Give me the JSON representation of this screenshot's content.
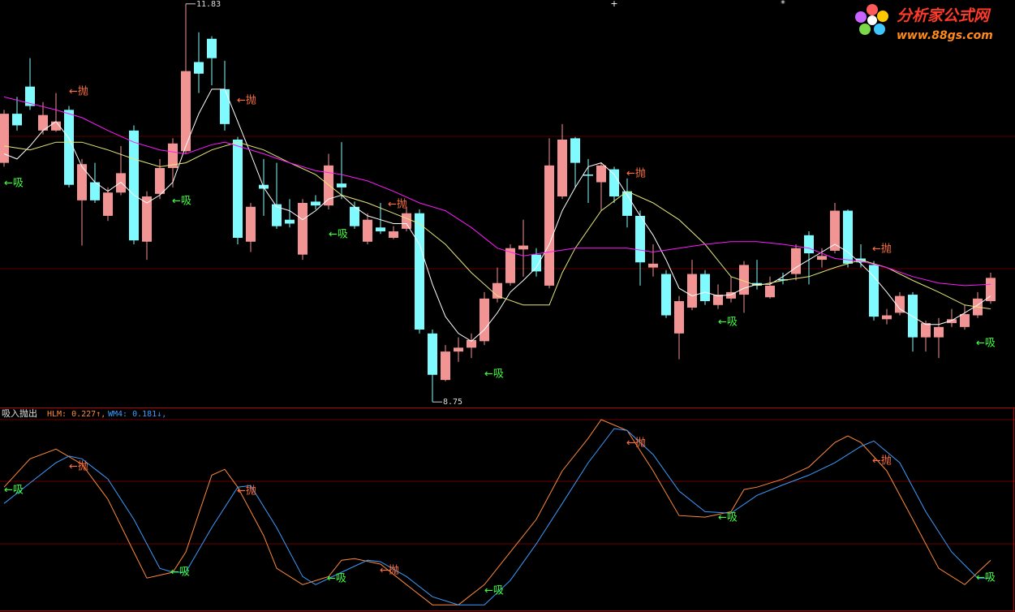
{
  "chart_data": [
    {
      "type": "candlestick",
      "open": [
        10.6,
        10.98,
        11.19,
        10.85,
        10.85,
        11.01,
        10.31,
        10.45,
        10.19,
        10.37,
        10.85,
        9.99,
        10.36,
        10.56,
        10.69,
        11.38,
        11.56,
        11.17,
        10.78,
        9.99,
        10.43,
        10.28,
        10.16,
        9.89,
        10.3,
        10.27,
        10.44,
        10.26,
        9.99,
        10.1,
        10.02,
        10.09,
        10.21,
        9.28,
        8.92,
        9.14,
        9.17,
        9.22,
        9.55,
        9.67,
        9.93,
        9.89,
        9.65,
        10.34,
        10.79,
        10.51,
        10.45,
        10.55,
        10.38,
        10.19,
        9.79,
        9.74,
        9.28,
        9.48,
        9.74,
        9.5,
        9.55,
        9.58,
        9.67,
        9.56,
        9.7,
        9.74,
        10.04,
        9.85,
        9.92,
        10.23,
        9.86,
        9.81,
        9.39,
        9.44,
        9.58,
        9.25,
        9.25,
        9.36,
        9.33,
        9.42,
        9.53
      ],
      "high": [
        11.01,
        11.11,
        11.41,
        11.07,
        11.14,
        11.04,
        10.63,
        10.6,
        10.41,
        10.73,
        10.89,
        10.38,
        10.63,
        10.79,
        11.83,
        11.61,
        11.58,
        11.39,
        10.8,
        10.29,
        10.63,
        10.6,
        10.32,
        10.32,
        10.35,
        10.67,
        10.76,
        10.3,
        10.21,
        10.29,
        10.11,
        10.26,
        10.24,
        9.31,
        9.19,
        9.25,
        9.28,
        9.6,
        9.79,
        9.97,
        10.16,
        9.94,
        10.79,
        10.9,
        10.8,
        10.63,
        10.6,
        10.57,
        10.48,
        10.23,
        9.97,
        9.77,
        9.57,
        9.85,
        9.77,
        9.66,
        9.72,
        9.84,
        9.85,
        9.72,
        9.75,
        9.97,
        10.07,
        9.94,
        10.29,
        10.24,
        9.97,
        9.84,
        9.47,
        9.6,
        9.6,
        9.38,
        9.4,
        9.47,
        9.5,
        9.6,
        9.75
      ],
      "low": [
        10.57,
        10.85,
        11.01,
        10.82,
        10.84,
        10.41,
        9.96,
        10.29,
        10.15,
        10.35,
        9.97,
        9.85,
        10.32,
        10.41,
        10.67,
        11.14,
        11.2,
        10.85,
        9.97,
        9.91,
        10.19,
        10.09,
        10.1,
        9.85,
        10.24,
        10.24,
        10.32,
        10.09,
        9.97,
        10.05,
        10.01,
        10.07,
        9.28,
        8.75,
        8.91,
        9.06,
        9.09,
        9.19,
        9.52,
        9.65,
        9.72,
        9.72,
        9.63,
        10.32,
        10.41,
        10.29,
        10.23,
        10.29,
        10.1,
        9.65,
        9.72,
        9.4,
        9.08,
        9.46,
        9.5,
        9.47,
        9.52,
        9.44,
        9.62,
        9.55,
        9.66,
        9.69,
        9.66,
        9.79,
        9.9,
        9.79,
        9.79,
        9.38,
        9.35,
        9.42,
        9.14,
        9.14,
        9.09,
        9.33,
        9.31,
        9.4,
        9.51
      ],
      "close": [
        10.98,
        10.89,
        11.04,
        10.97,
        10.92,
        10.43,
        10.59,
        10.31,
        10.37,
        10.52,
        10.0,
        10.34,
        10.56,
        10.75,
        11.31,
        11.29,
        11.41,
        10.9,
        10.02,
        10.26,
        10.4,
        10.11,
        10.13,
        10.29,
        10.27,
        10.58,
        10.41,
        10.11,
        10.16,
        10.07,
        10.07,
        10.21,
        9.31,
        8.96,
        9.14,
        9.17,
        9.23,
        9.55,
        9.67,
        9.94,
        9.96,
        9.76,
        10.58,
        10.78,
        10.6,
        10.5,
        10.58,
        10.34,
        10.19,
        9.83,
        9.82,
        9.42,
        9.53,
        9.74,
        9.53,
        9.58,
        9.6,
        9.81,
        9.65,
        9.65,
        9.69,
        9.94,
        9.9,
        9.88,
        10.23,
        9.82,
        9.83,
        9.41,
        9.42,
        9.57,
        9.25,
        9.36,
        9.33,
        9.39,
        9.43,
        9.55,
        9.71
      ],
      "up_color": "#f29494",
      "down_color": "#7ffbff",
      "ylim": [
        8.72,
        11.86
      ],
      "series": [
        {
          "color": "#ffffff",
          "values": [
            10.67,
            10.63,
            10.73,
            10.85,
            10.92,
            10.79,
            10.57,
            10.45,
            10.38,
            10.45,
            10.35,
            10.29,
            10.35,
            10.45,
            10.73,
            10.98,
            11.17,
            11.17,
            10.92,
            10.67,
            10.41,
            10.26,
            10.23,
            10.16,
            10.23,
            10.32,
            10.35,
            10.26,
            10.19,
            10.16,
            10.13,
            10.13,
            9.97,
            9.66,
            9.41,
            9.28,
            9.22,
            9.31,
            9.44,
            9.6,
            9.69,
            9.79,
            9.97,
            10.23,
            10.41,
            10.57,
            10.6,
            10.51,
            10.35,
            10.19,
            10.04,
            9.85,
            9.63,
            9.57,
            9.6,
            9.57,
            9.58,
            9.63,
            9.66,
            9.66,
            9.72,
            9.79,
            9.85,
            9.91,
            9.97,
            9.91,
            9.82,
            9.72,
            9.6,
            9.47,
            9.41,
            9.35,
            9.35,
            9.38,
            9.44,
            9.5,
            9.57
          ]
        },
        {
          "color": "#e8e87a",
          "x": [
            0,
            2,
            4,
            6,
            8,
            10,
            12,
            14,
            16,
            18,
            20,
            22,
            24,
            26,
            28,
            30,
            32,
            34,
            36,
            38,
            40,
            42,
            43,
            44,
            46,
            48,
            50,
            52,
            54,
            56,
            58,
            60,
            62,
            64,
            66,
            68,
            70,
            72,
            74,
            76
          ],
          "values": [
            10.73,
            10.7,
            10.76,
            10.76,
            10.7,
            10.63,
            10.57,
            10.6,
            10.7,
            10.76,
            10.7,
            10.6,
            10.51,
            10.35,
            10.29,
            10.21,
            10.13,
            9.97,
            9.75,
            9.57,
            9.5,
            9.5,
            9.75,
            9.94,
            10.23,
            10.38,
            10.29,
            10.16,
            9.97,
            9.72,
            9.65,
            9.69,
            9.72,
            9.79,
            9.85,
            9.79,
            9.69,
            9.6,
            9.5,
            9.47
          ]
        },
        {
          "color": "#ff1aff",
          "x": [
            0,
            2,
            4,
            6,
            8,
            10,
            12,
            14,
            16,
            17,
            18,
            20,
            22,
            24,
            26,
            28,
            30,
            32,
            34,
            36,
            38,
            40,
            42,
            44,
            46,
            48,
            50,
            52,
            54,
            56,
            58,
            60,
            62,
            64,
            66,
            68,
            70,
            72,
            74,
            76
          ],
          "values": [
            11.11,
            11.06,
            11.01,
            10.95,
            10.85,
            10.76,
            10.7,
            10.67,
            10.74,
            10.76,
            10.73,
            10.67,
            10.6,
            10.54,
            10.51,
            10.46,
            10.38,
            10.29,
            10.23,
            10.1,
            9.94,
            9.88,
            9.91,
            9.94,
            9.94,
            9.94,
            9.91,
            9.94,
            9.97,
            9.99,
            9.99,
            9.97,
            9.94,
            9.86,
            9.84,
            9.79,
            9.72,
            9.67,
            9.65,
            9.66
          ]
        }
      ],
      "annotations": [
        {
          "text": "←抛",
          "color": "#ff7040"
        },
        {
          "text": "←抛",
          "color": "#ff7040"
        },
        {
          "text": "←抛",
          "color": "#ff7040"
        },
        {
          "text": "←抛",
          "color": "#ff7040"
        },
        {
          "text": "←抛",
          "color": "#ff7040"
        },
        {
          "text": "←吸",
          "color": "#3cff3c"
        },
        {
          "text": "←吸",
          "color": "#3cff3c"
        },
        {
          "text": "←吸",
          "color": "#3cff3c"
        },
        {
          "text": "←吸",
          "color": "#3cff3c"
        },
        {
          "text": "←吸",
          "color": "#3cff3c"
        },
        {
          "text": "←吸",
          "color": "#3cff3c"
        }
      ]
    },
    {
      "type": "line",
      "title": "吸入抛出",
      "ylim": [
        0.102,
        0.614
      ],
      "series": [
        {
          "name": "HLM: 0.227↑,",
          "color": "#ff8a3a",
          "x": [
            0,
            2,
            4,
            6,
            8,
            10,
            11,
            13,
            14,
            16,
            17,
            18,
            20,
            21,
            23,
            25,
            26,
            27,
            29,
            31,
            33,
            35,
            37,
            39,
            41,
            43,
            45,
            46,
            48,
            50,
            52,
            54,
            56,
            57,
            58,
            60,
            62,
            64,
            65,
            66,
            68,
            70,
            72,
            74,
            76
          ],
          "values": [
            0.415,
            0.488,
            0.513,
            0.474,
            0.384,
            0.248,
            0.181,
            0.196,
            0.248,
            0.446,
            0.461,
            0.415,
            0.29,
            0.206,
            0.164,
            0.185,
            0.227,
            0.231,
            0.217,
            0.164,
            0.112,
            0.112,
            0.164,
            0.248,
            0.332,
            0.457,
            0.541,
            0.589,
            0.561,
            0.457,
            0.342,
            0.338,
            0.352,
            0.409,
            0.415,
            0.436,
            0.467,
            0.53,
            0.547,
            0.53,
            0.457,
            0.332,
            0.206,
            0.164,
            0.227
          ]
        },
        {
          "name": "WM4: 0.181↓,",
          "color": "#3c9cff",
          "x": [
            0,
            2,
            4,
            5,
            6,
            8,
            10,
            12,
            13,
            14,
            16,
            18,
            19,
            21,
            23,
            24,
            26,
            28,
            29,
            31,
            33,
            35,
            37,
            39,
            41,
            43,
            45,
            47,
            48,
            50,
            52,
            54,
            56,
            58,
            60,
            62,
            64,
            66,
            67,
            69,
            71,
            73,
            75,
            76
          ],
          "values": [
            0.373,
            0.426,
            0.478,
            0.495,
            0.488,
            0.436,
            0.332,
            0.206,
            0.196,
            0.196,
            0.311,
            0.415,
            0.419,
            0.311,
            0.185,
            0.164,
            0.196,
            0.227,
            0.223,
            0.185,
            0.133,
            0.112,
            0.112,
            0.175,
            0.269,
            0.373,
            0.478,
            0.566,
            0.561,
            0.499,
            0.405,
            0.352,
            0.348,
            0.394,
            0.421,
            0.446,
            0.478,
            0.52,
            0.534,
            0.478,
            0.352,
            0.248,
            0.181,
            0.181
          ]
        }
      ],
      "annotations": [
        {
          "text": "←吸",
          "color": "#3cff3c"
        },
        {
          "text": "←吸",
          "color": "#3cff3c"
        },
        {
          "text": "←吸",
          "color": "#3cff3c"
        },
        {
          "text": "←吸",
          "color": "#3cff3c"
        },
        {
          "text": "←吸",
          "color": "#3cff3c"
        },
        {
          "text": "←吸",
          "color": "#3cff3c"
        },
        {
          "text": "←抛",
          "color": "#ff7040"
        },
        {
          "text": "←抛",
          "color": "#ff7040"
        },
        {
          "text": "←抛",
          "color": "#ff7040"
        },
        {
          "text": "←抛",
          "color": "#ff7040"
        },
        {
          "text": "←抛",
          "color": "#ff7040"
        }
      ]
    }
  ],
  "watermark": {
    "title": "分析家公式网",
    "url": "www.88gs.com"
  }
}
